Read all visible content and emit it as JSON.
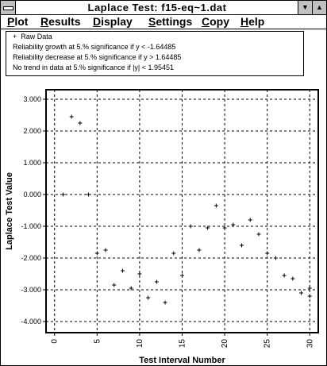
{
  "window": {
    "title": "Laplace Test:  f15-eq~1.dat",
    "minimize_glyph": "▼",
    "maximize_glyph": "▲"
  },
  "menu": [
    {
      "first": "P",
      "rest": "lot"
    },
    {
      "first": "R",
      "rest": "esults"
    },
    {
      "first": "D",
      "rest": "isplay"
    },
    {
      "first": "S",
      "rest": "ettings"
    },
    {
      "first": "C",
      "rest": "opy"
    },
    {
      "first": "H",
      "rest": "elp"
    }
  ],
  "legend": {
    "marker": "+",
    "series_label": "Raw Data",
    "lines": [
      "Reliability growth at 5.% significance if y < -1.64485",
      "Reliability decrease at 5.% significance if y > 1.64485",
      "No trend in data at 5.% significance if |y| < 1.95451"
    ]
  },
  "chart_data": {
    "type": "scatter",
    "xlabel": "Test Interval Number",
    "ylabel": "Laplace Test Value",
    "xlim": [
      -1,
      31
    ],
    "ylim": [
      -4.35,
      3.3
    ],
    "x_ticks": [
      0,
      5,
      10,
      15,
      20,
      25,
      30
    ],
    "y_ticks": [
      3,
      2,
      1,
      0,
      -1,
      -2,
      -3,
      -4
    ],
    "x_tick_labels": [
      "0",
      "5",
      "10",
      "15",
      "20",
      "25",
      "30"
    ],
    "y_tick_labels": [
      "3.000",
      "2.000",
      "1.000",
      "0.000",
      "-1.000",
      "-2.000",
      "-3.000",
      "-4.000"
    ],
    "grid": true,
    "series": [
      {
        "name": "Raw Data",
        "marker": "+",
        "x": [
          1,
          2,
          3,
          4,
          5,
          6,
          7,
          8,
          9,
          10,
          11,
          12,
          13,
          14,
          15,
          16,
          17,
          18,
          19,
          20,
          21,
          22,
          23,
          24,
          25,
          26,
          27,
          28,
          29,
          30,
          30
        ],
        "y": [
          0.0,
          2.45,
          2.25,
          0.0,
          -1.85,
          -1.75,
          -2.85,
          -2.4,
          -2.95,
          -2.5,
          -3.25,
          -2.75,
          -3.4,
          -1.85,
          -2.55,
          -1.0,
          -1.75,
          -1.05,
          -0.35,
          -1.05,
          -0.95,
          -1.6,
          -0.8,
          -1.25,
          -1.85,
          -2.0,
          -2.55,
          -2.65,
          -3.1,
          -2.95,
          -3.2
        ]
      }
    ]
  }
}
